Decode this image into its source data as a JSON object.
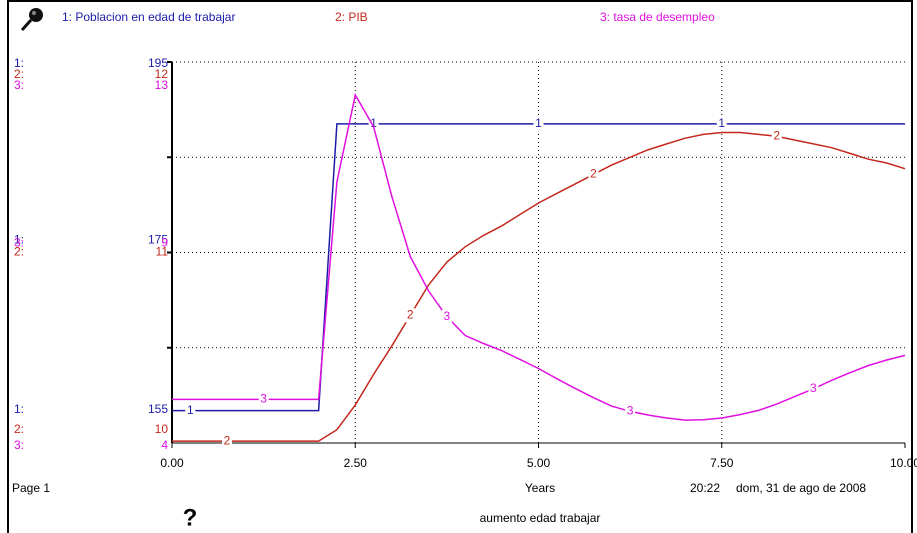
{
  "chart_data": {
    "type": "line",
    "xlabel": "Years",
    "xlim": [
      0,
      10
    ],
    "xticks": [
      {
        "value": 0,
        "label": "0.00"
      },
      {
        "value": 2.5,
        "label": "2.50"
      },
      {
        "value": 5,
        "label": "5.00"
      },
      {
        "value": 7.5,
        "label": "7.50"
      },
      {
        "value": 10,
        "label": "10.00"
      }
    ],
    "grid": true,
    "x": [
      0,
      0.25,
      0.5,
      0.75,
      1,
      1.25,
      1.5,
      1.75,
      2,
      2.25,
      2.5,
      2.75,
      3,
      3.25,
      3.5,
      3.75,
      4,
      4.25,
      4.5,
      4.75,
      5,
      5.25,
      5.5,
      5.75,
      6,
      6.25,
      6.5,
      6.75,
      7,
      7.25,
      7.5,
      7.75,
      8,
      8.25,
      8.5,
      8.75,
      9,
      9.25,
      9.5,
      9.75,
      10
    ],
    "series": [
      {
        "name": "1: Poblacion en edad de trabajar",
        "id": "1",
        "axis_key": "1:",
        "color": "#1c1ca8",
        "ylim": [
          155,
          195
        ],
        "yticks": [
          155,
          175,
          195
        ],
        "values": [
          158.4,
          158.4,
          158.4,
          158.4,
          158.4,
          158.4,
          158.4,
          158.4,
          158.4,
          188.5,
          188.5,
          188.5,
          188.5,
          188.5,
          188.5,
          188.5,
          188.5,
          188.5,
          188.5,
          188.5,
          188.5,
          188.5,
          188.5,
          188.5,
          188.5,
          188.5,
          188.5,
          188.5,
          188.5,
          188.5,
          188.5,
          188.5,
          188.5,
          188.5,
          188.5,
          188.5,
          188.5,
          188.5,
          188.5,
          188.5,
          188.5
        ]
      },
      {
        "name": "2: PIB",
        "id": "2",
        "axis_key": "2:",
        "color": "#c4281c",
        "ylim": [
          10,
          12
        ],
        "yticks": [
          10,
          11,
          12
        ],
        "values": [
          10.01,
          10.01,
          10.01,
          10.01,
          10.01,
          10.01,
          10.01,
          10.01,
          10.01,
          10.07,
          10.2,
          10.36,
          10.51,
          10.67,
          10.83,
          10.95,
          11.03,
          11.09,
          11.14,
          11.2,
          11.26,
          11.31,
          11.36,
          11.41,
          11.46,
          11.5,
          11.54,
          11.57,
          11.6,
          11.62,
          11.63,
          11.63,
          11.62,
          11.61,
          11.59,
          11.57,
          11.55,
          11.52,
          11.49,
          11.47,
          11.44
        ]
      },
      {
        "name": "3: tasa de desempleo",
        "id": "3",
        "axis_key": "3:",
        "color": "#e010e0",
        "ylim": [
          4,
          13
        ],
        "yticks": [
          4,
          9,
          13
        ],
        "values": [
          5.03,
          5.03,
          5.03,
          5.03,
          5.03,
          5.03,
          5.03,
          5.03,
          5.03,
          10.17,
          12.22,
          11.47,
          9.82,
          8.41,
          7.59,
          6.98,
          6.54,
          6.35,
          6.18,
          5.97,
          5.76,
          5.52,
          5.29,
          5.07,
          4.87,
          4.75,
          4.66,
          4.59,
          4.54,
          4.55,
          4.59,
          4.67,
          4.77,
          4.92,
          5.1,
          5.28,
          5.48,
          5.66,
          5.83,
          5.96,
          6.07
        ]
      }
    ]
  },
  "ui": {
    "page": "Page 1",
    "time": "20:22",
    "date": "dom, 31 de ago de 2008",
    "caption": "aumento edad trabajar",
    "help": "?"
  }
}
